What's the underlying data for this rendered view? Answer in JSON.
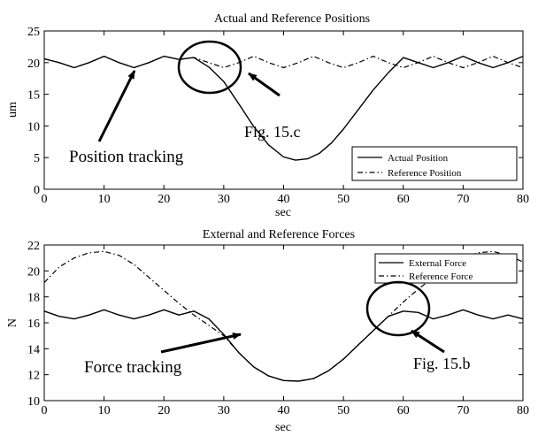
{
  "chart_data": [
    {
      "type": "line",
      "title": "Actual and Reference Positions",
      "xlabel": "sec",
      "ylabel": "um",
      "xlim": [
        0,
        80
      ],
      "ylim": [
        0,
        25
      ],
      "xticks": [
        "0",
        "10",
        "20",
        "30",
        "40",
        "50",
        "60",
        "70",
        "80"
      ],
      "yticks": [
        "0",
        "5",
        "10",
        "15",
        "20",
        "25"
      ],
      "grid": false,
      "legend_position": "bottom-right",
      "series": [
        {
          "name": "Actual Position",
          "style": "solid",
          "x": [
            0,
            2.5,
            5,
            7.5,
            10,
            12.5,
            15,
            17.5,
            20,
            22.5,
            25,
            27.5,
            30,
            32.5,
            35,
            37.5,
            40,
            42,
            44,
            46,
            48,
            50,
            52.5,
            55,
            57.5,
            60,
            62.5,
            65,
            67.5,
            70,
            72.5,
            75,
            77.5,
            80
          ],
          "values": [
            20.6,
            20.0,
            19.2,
            20.0,
            21.0,
            20.0,
            19.2,
            20.0,
            21.0,
            20.5,
            20.8,
            19.3,
            17.0,
            13.5,
            9.9,
            7.0,
            5.1,
            4.6,
            4.8,
            5.7,
            7.3,
            9.5,
            12.6,
            15.7,
            18.4,
            20.8,
            20.0,
            19.2,
            20.0,
            21.0,
            20.0,
            19.2,
            20.0,
            21.0
          ]
        },
        {
          "name": "Reference Position",
          "style": "dashdot",
          "x": [
            0,
            2.5,
            5,
            7.5,
            10,
            12.5,
            15,
            17.5,
            20,
            22.5,
            25,
            27.5,
            30,
            32.5,
            35,
            37.5,
            40,
            42.5,
            45,
            47.5,
            50,
            52.5,
            55,
            57.5,
            60,
            62.5,
            65,
            67.5,
            70,
            72.5,
            75,
            77.5,
            80
          ],
          "values": [
            20.6,
            20.0,
            19.2,
            20.0,
            21.0,
            20.0,
            19.2,
            20.0,
            21.0,
            20.5,
            20.8,
            20.0,
            19.2,
            20.0,
            21.0,
            20.0,
            19.2,
            20.0,
            21.0,
            20.0,
            19.2,
            20.0,
            21.0,
            20.0,
            19.2,
            20.0,
            21.0,
            20.0,
            19.2,
            20.0,
            21.0,
            20.0,
            19.2
          ]
        }
      ],
      "annotations": [
        "Position tracking",
        "Fig. 15.c"
      ]
    },
    {
      "type": "line",
      "title": "External and Reference Forces",
      "xlabel": "sec",
      "ylabel": "N",
      "xlim": [
        0,
        80
      ],
      "ylim": [
        10,
        22
      ],
      "xticks": [
        "0",
        "10",
        "20",
        "30",
        "40",
        "50",
        "60",
        "70",
        "80"
      ],
      "yticks": [
        "10",
        "12",
        "14",
        "16",
        "18",
        "20",
        "22"
      ],
      "grid": false,
      "legend_position": "top-right",
      "series": [
        {
          "name": "External Force",
          "style": "solid",
          "x": [
            0,
            2.5,
            5,
            7.5,
            10,
            12.5,
            15,
            17.5,
            20,
            22.5,
            25,
            27.5,
            30,
            32.5,
            35,
            37.5,
            40,
            42.5,
            45,
            47.5,
            50,
            52.5,
            55,
            57.5,
            60,
            62.5,
            65,
            67.5,
            70,
            72.5,
            75,
            77.5,
            80
          ],
          "values": [
            16.9,
            16.5,
            16.3,
            16.6,
            17.0,
            16.6,
            16.3,
            16.6,
            17.0,
            16.6,
            16.9,
            16.3,
            15.1,
            13.7,
            12.6,
            11.9,
            11.55,
            11.5,
            11.7,
            12.3,
            13.2,
            14.3,
            15.4,
            16.5,
            16.9,
            16.8,
            16.3,
            16.6,
            17.0,
            16.6,
            16.3,
            16.6,
            16.3
          ]
        },
        {
          "name": "Reference Force",
          "style": "dashdot",
          "x": [
            0,
            2.5,
            5,
            7.5,
            10,
            12.5,
            15,
            17.5,
            20,
            22.5,
            25,
            27.5,
            30,
            32.5,
            35,
            37.5,
            40,
            42.5,
            45,
            47.5,
            50,
            52.5,
            55,
            57.5,
            60,
            62.5,
            65,
            67.5,
            70,
            72.5,
            75,
            77.5,
            80
          ],
          "values": [
            19.1,
            20.3,
            21.0,
            21.4,
            21.5,
            21.2,
            20.5,
            19.5,
            18.5,
            17.5,
            16.6,
            15.8,
            15.0,
            13.7,
            12.6,
            11.9,
            11.55,
            11.5,
            11.7,
            12.3,
            13.2,
            14.3,
            15.4,
            16.5,
            17.6,
            18.6,
            19.5,
            20.3,
            21.0,
            21.4,
            21.5,
            21.2,
            20.7
          ]
        }
      ],
      "annotations": [
        "Force tracking",
        "Fig. 15.b"
      ]
    }
  ]
}
